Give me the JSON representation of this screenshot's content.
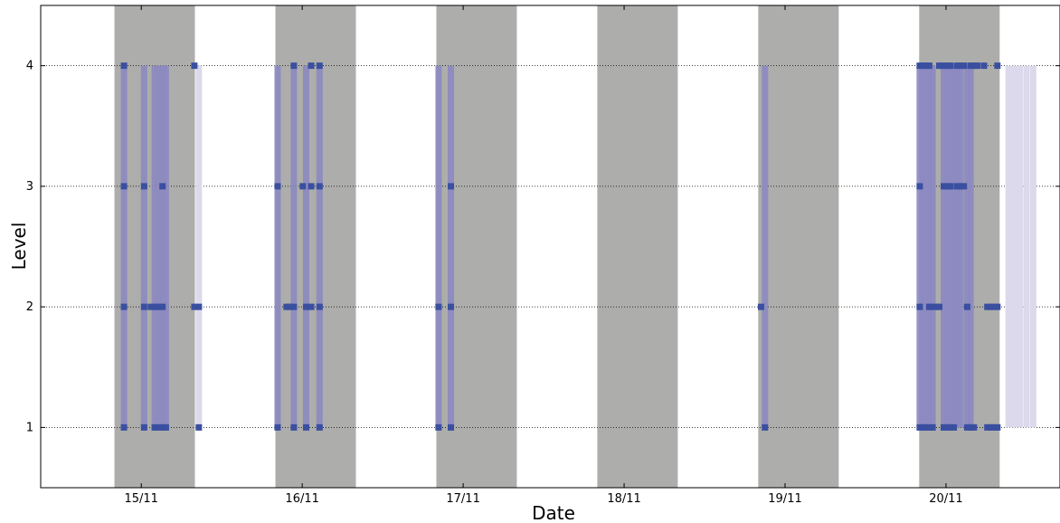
{
  "chart_data": {
    "type": "scatter",
    "xlabel": "Date",
    "ylabel": "Level",
    "x_unit": "days",
    "xlim": [
      "2014-11-14 09:00",
      "2014-11-20 17:00"
    ],
    "ylim": [
      0.5,
      4.5
    ],
    "x_ticks": [
      {
        "date": "2014-11-15",
        "label": "15/11"
      },
      {
        "date": "2014-11-16",
        "label": "16/11"
      },
      {
        "date": "2014-11-17",
        "label": "17/11"
      },
      {
        "date": "2014-11-18",
        "label": "18/11"
      },
      {
        "date": "2014-11-19",
        "label": "19/11"
      },
      {
        "date": "2014-11-20",
        "label": "20/11"
      }
    ],
    "y_ticks": [
      1,
      2,
      3,
      4
    ],
    "grid": "horizontal dotted",
    "shaded_periods": [
      [
        "2014-11-14 20:00",
        "2014-11-15 08:00"
      ],
      [
        "2014-11-15 20:00",
        "2014-11-16 08:00"
      ],
      [
        "2014-11-16 20:00",
        "2014-11-17 08:00"
      ],
      [
        "2014-11-17 20:00",
        "2014-11-18 08:00"
      ],
      [
        "2014-11-18 20:00",
        "2014-11-19 08:00"
      ],
      [
        "2014-11-19 20:00",
        "2014-11-20 08:00"
      ]
    ],
    "colors": {
      "shade": "#adadab",
      "marker": "#3a4fa0",
      "range_dark": "#8c89c0",
      "range_light": "#dcd9ec",
      "grid": "#000000"
    },
    "ranges": [
      {
        "x": "2014-11-14 21:25",
        "ymin": 1,
        "ymax": 4,
        "shade": "dark"
      },
      {
        "x": "2014-11-15 00:25",
        "ymin": 1,
        "ymax": 4,
        "shade": "dark"
      },
      {
        "x": "2014-11-15 02:00",
        "ymin": 1,
        "ymax": 4,
        "shade": "dark"
      },
      {
        "x": "2014-11-15 02:35",
        "ymin": 1,
        "ymax": 4,
        "shade": "dark"
      },
      {
        "x": "2014-11-15 03:10",
        "ymin": 1,
        "ymax": 4,
        "shade": "dark"
      },
      {
        "x": "2014-11-15 03:40",
        "ymin": 1,
        "ymax": 4,
        "shade": "dark"
      },
      {
        "x": "2014-11-15 08:35",
        "ymin": 1,
        "ymax": 4,
        "shade": "light"
      },
      {
        "x": "2014-11-15 20:20",
        "ymin": 1,
        "ymax": 4,
        "shade": "dark"
      },
      {
        "x": "2014-11-15 22:45",
        "ymin": 1,
        "ymax": 4,
        "shade": "dark"
      },
      {
        "x": "2014-11-16 00:35",
        "ymin": 1,
        "ymax": 4,
        "shade": "dark"
      },
      {
        "x": "2014-11-16 02:35",
        "ymin": 1,
        "ymax": 4,
        "shade": "dark"
      },
      {
        "x": "2014-11-16 20:20",
        "ymin": 1,
        "ymax": 4,
        "shade": "dark"
      },
      {
        "x": "2014-11-16 22:10",
        "ymin": 1,
        "ymax": 4,
        "shade": "dark"
      },
      {
        "x": "2014-11-18 21:00",
        "ymin": 1,
        "ymax": 4,
        "shade": "dark"
      },
      {
        "x": "2014-11-19 20:05",
        "ymin": 1,
        "ymax": 4,
        "shade": "dark"
      },
      {
        "x": "2014-11-19 20:30",
        "ymin": 1,
        "ymax": 4,
        "shade": "dark"
      },
      {
        "x": "2014-11-19 21:00",
        "ymin": 1,
        "ymax": 4,
        "shade": "dark"
      },
      {
        "x": "2014-11-19 21:30",
        "ymin": 1,
        "ymax": 4,
        "shade": "dark"
      },
      {
        "x": "2014-11-19 22:00",
        "ymin": 1,
        "ymax": 4,
        "shade": "dark"
      },
      {
        "x": "2014-11-19 23:40",
        "ymin": 1,
        "ymax": 4,
        "shade": "dark"
      },
      {
        "x": "2014-11-20 00:10",
        "ymin": 1,
        "ymax": 4,
        "shade": "dark"
      },
      {
        "x": "2014-11-20 00:40",
        "ymin": 1,
        "ymax": 4,
        "shade": "dark"
      },
      {
        "x": "2014-11-20 01:10",
        "ymin": 1,
        "ymax": 4,
        "shade": "dark"
      },
      {
        "x": "2014-11-20 01:40",
        "ymin": 1,
        "ymax": 4,
        "shade": "dark"
      },
      {
        "x": "2014-11-20 02:10",
        "ymin": 1,
        "ymax": 4,
        "shade": "dark"
      },
      {
        "x": "2014-11-20 03:10",
        "ymin": 1,
        "ymax": 4,
        "shade": "dark"
      },
      {
        "x": "2014-11-20 03:40",
        "ymin": 1,
        "ymax": 4,
        "shade": "dark"
      },
      {
        "x": "2014-11-20 09:20",
        "ymin": 1,
        "ymax": 4,
        "shade": "light"
      },
      {
        "x": "2014-11-20 10:15",
        "ymin": 1,
        "ymax": 4,
        "shade": "light"
      },
      {
        "x": "2014-11-20 11:00",
        "ymin": 1,
        "ymax": 4,
        "shade": "light"
      },
      {
        "x": "2014-11-20 12:00",
        "ymin": 1,
        "ymax": 4,
        "shade": "light"
      },
      {
        "x": "2014-11-20 13:00",
        "ymin": 1,
        "ymax": 4,
        "shade": "light"
      }
    ],
    "points": [
      {
        "x": "2014-11-14 21:25",
        "y": 4
      },
      {
        "x": "2014-11-14 21:25",
        "y": 3
      },
      {
        "x": "2014-11-14 21:25",
        "y": 2
      },
      {
        "x": "2014-11-14 21:25",
        "y": 1
      },
      {
        "x": "2014-11-15 00:25",
        "y": 3
      },
      {
        "x": "2014-11-15 00:25",
        "y": 2
      },
      {
        "x": "2014-11-15 00:25",
        "y": 1
      },
      {
        "x": "2014-11-15 01:25",
        "y": 2
      },
      {
        "x": "2014-11-15 02:00",
        "y": 2
      },
      {
        "x": "2014-11-15 02:00",
        "y": 1
      },
      {
        "x": "2014-11-15 02:35",
        "y": 2
      },
      {
        "x": "2014-11-15 02:35",
        "y": 1
      },
      {
        "x": "2014-11-15 03:10",
        "y": 3
      },
      {
        "x": "2014-11-15 03:10",
        "y": 2
      },
      {
        "x": "2014-11-15 03:10",
        "y": 1
      },
      {
        "x": "2014-11-15 03:40",
        "y": 1
      },
      {
        "x": "2014-11-15 07:55",
        "y": 4
      },
      {
        "x": "2014-11-15 07:55",
        "y": 2
      },
      {
        "x": "2014-11-15 08:35",
        "y": 2
      },
      {
        "x": "2014-11-15 08:35",
        "y": 1
      },
      {
        "x": "2014-11-15 20:20",
        "y": 3
      },
      {
        "x": "2014-11-15 20:20",
        "y": 1
      },
      {
        "x": "2014-11-15 21:40",
        "y": 2
      },
      {
        "x": "2014-11-15 22:10",
        "y": 2
      },
      {
        "x": "2014-11-15 22:45",
        "y": 4
      },
      {
        "x": "2014-11-15 22:45",
        "y": 2
      },
      {
        "x": "2014-11-15 22:45",
        "y": 1
      },
      {
        "x": "2014-11-16 00:05",
        "y": 3
      },
      {
        "x": "2014-11-16 00:35",
        "y": 2
      },
      {
        "x": "2014-11-16 00:35",
        "y": 1
      },
      {
        "x": "2014-11-16 01:20",
        "y": 4
      },
      {
        "x": "2014-11-16 01:20",
        "y": 3
      },
      {
        "x": "2014-11-16 01:20",
        "y": 2
      },
      {
        "x": "2014-11-16 02:35",
        "y": 4
      },
      {
        "x": "2014-11-16 02:35",
        "y": 3
      },
      {
        "x": "2014-11-16 02:35",
        "y": 2
      },
      {
        "x": "2014-11-16 02:35",
        "y": 1
      },
      {
        "x": "2014-11-16 20:20",
        "y": 2
      },
      {
        "x": "2014-11-16 20:20",
        "y": 1
      },
      {
        "x": "2014-11-16 22:10",
        "y": 3
      },
      {
        "x": "2014-11-16 22:10",
        "y": 2
      },
      {
        "x": "2014-11-16 22:10",
        "y": 1
      },
      {
        "x": "2014-11-18 20:25",
        "y": 2
      },
      {
        "x": "2014-11-18 21:00",
        "y": 1
      },
      {
        "x": "2014-11-19 20:05",
        "y": 4
      },
      {
        "x": "2014-11-19 20:05",
        "y": 3
      },
      {
        "x": "2014-11-19 20:05",
        "y": 2
      },
      {
        "x": "2014-11-19 20:05",
        "y": 1
      },
      {
        "x": "2014-11-19 20:30",
        "y": 4
      },
      {
        "x": "2014-11-19 20:30",
        "y": 1
      },
      {
        "x": "2014-11-19 21:00",
        "y": 4
      },
      {
        "x": "2014-11-19 21:00",
        "y": 1
      },
      {
        "x": "2014-11-19 21:30",
        "y": 4
      },
      {
        "x": "2014-11-19 21:30",
        "y": 2
      },
      {
        "x": "2014-11-19 21:30",
        "y": 1
      },
      {
        "x": "2014-11-19 22:00",
        "y": 2
      },
      {
        "x": "2014-11-19 22:00",
        "y": 1
      },
      {
        "x": "2014-11-19 22:30",
        "y": 2
      },
      {
        "x": "2014-11-19 23:00",
        "y": 4
      },
      {
        "x": "2014-11-19 23:00",
        "y": 2
      },
      {
        "x": "2014-11-19 23:40",
        "y": 4
      },
      {
        "x": "2014-11-19 23:40",
        "y": 3
      },
      {
        "x": "2014-11-19 23:40",
        "y": 1
      },
      {
        "x": "2014-11-20 00:10",
        "y": 4
      },
      {
        "x": "2014-11-20 00:10",
        "y": 3
      },
      {
        "x": "2014-11-20 00:10",
        "y": 1
      },
      {
        "x": "2014-11-20 00:40",
        "y": 4
      },
      {
        "x": "2014-11-20 00:40",
        "y": 3
      },
      {
        "x": "2014-11-20 00:40",
        "y": 1
      },
      {
        "x": "2014-11-20 01:10",
        "y": 1
      },
      {
        "x": "2014-11-20 01:40",
        "y": 4
      },
      {
        "x": "2014-11-20 01:40",
        "y": 3
      },
      {
        "x": "2014-11-20 02:10",
        "y": 4
      },
      {
        "x": "2014-11-20 02:10",
        "y": 3
      },
      {
        "x": "2014-11-20 02:40",
        "y": 4
      },
      {
        "x": "2014-11-20 02:40",
        "y": 3
      },
      {
        "x": "2014-11-20 03:10",
        "y": 2
      },
      {
        "x": "2014-11-20 03:10",
        "y": 1
      },
      {
        "x": "2014-11-20 03:40",
        "y": 4
      },
      {
        "x": "2014-11-20 03:40",
        "y": 1
      },
      {
        "x": "2014-11-20 04:10",
        "y": 4
      },
      {
        "x": "2014-11-20 04:10",
        "y": 1
      },
      {
        "x": "2014-11-20 04:40",
        "y": 4
      },
      {
        "x": "2014-11-20 05:40",
        "y": 4
      },
      {
        "x": "2014-11-20 06:10",
        "y": 2
      },
      {
        "x": "2014-11-20 06:10",
        "y": 1
      },
      {
        "x": "2014-11-20 06:40",
        "y": 2
      },
      {
        "x": "2014-11-20 06:40",
        "y": 1
      },
      {
        "x": "2014-11-20 07:10",
        "y": 2
      },
      {
        "x": "2014-11-20 07:10",
        "y": 1
      },
      {
        "x": "2014-11-20 07:40",
        "y": 4
      },
      {
        "x": "2014-11-20 07:40",
        "y": 2
      },
      {
        "x": "2014-11-20 07:40",
        "y": 1
      }
    ]
  }
}
